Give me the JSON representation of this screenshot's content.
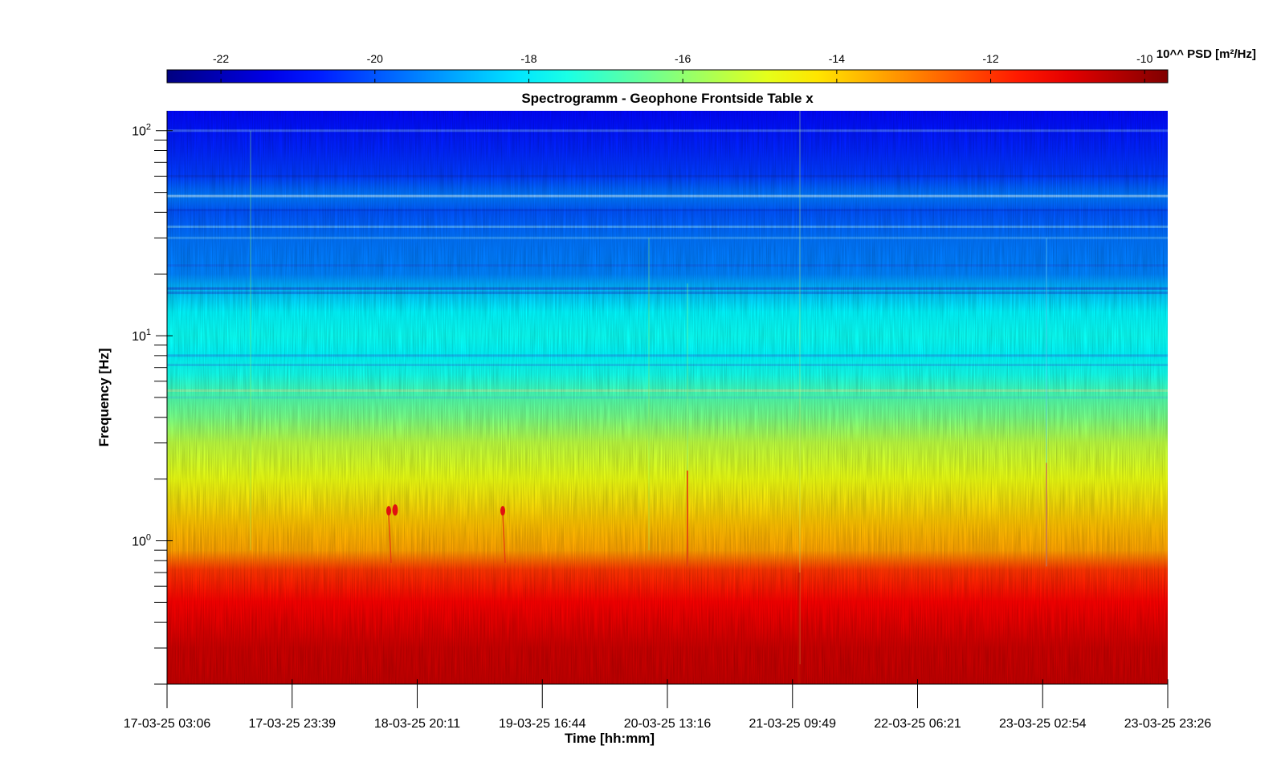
{
  "chart_data": {
    "type": "heatmap",
    "title": "Spectrogramm - Geophone Frontside Table x",
    "xlabel": "Time [hh:mm]",
    "ylabel": "Frequency [Hz]",
    "x_ticks": [
      "17-03-25 03:06",
      "17-03-25 23:39",
      "18-03-25 20:11",
      "19-03-25 16:44",
      "20-03-25 13:16",
      "21-03-25 09:49",
      "22-03-25 06:21",
      "23-03-25 02:54",
      "23-03-25 23:26"
    ],
    "y_scale": "log",
    "ylim": [
      0.2,
      125
    ],
    "y_tick_values": [
      1,
      10,
      100
    ],
    "y_tick_labels": [
      {
        "base": "10",
        "exp": "0"
      },
      {
        "base": "10",
        "exp": "1"
      },
      {
        "base": "10",
        "exp": "2"
      }
    ],
    "colorbar": {
      "label": "10^^ PSD [m²/Hz]",
      "range": [
        -22.7,
        -9.7
      ],
      "ticks": [
        -22,
        -20,
        -18,
        -16,
        -14,
        -12,
        -10
      ],
      "colormap": "jet",
      "position": "top"
    },
    "psd_profile": {
      "frequency_hz": [
        0.2,
        0.3,
        0.5,
        0.72,
        0.9,
        1.2,
        2,
        3,
        4,
        5.4,
        6.5,
        8,
        10,
        13,
        17,
        20,
        30,
        40,
        48,
        60,
        80,
        100,
        125
      ],
      "log10_psd": [
        -10.6,
        -10.7,
        -11.3,
        -12.0,
        -13.4,
        -13.8,
        -14.8,
        -15.4,
        -16.3,
        -17.0,
        -17.6,
        -17.9,
        -17.7,
        -17.9,
        -18.7,
        -19.4,
        -19.6,
        -20.0,
        -19.5,
        -20.3,
        -20.6,
        -20.8,
        -21.0
      ]
    },
    "events": [
      {
        "time": "18-03-25 18:10",
        "frequency_hz": 1.4
      },
      {
        "time": "19-03-25 11:15",
        "frequency_hz": 1.4
      }
    ]
  }
}
